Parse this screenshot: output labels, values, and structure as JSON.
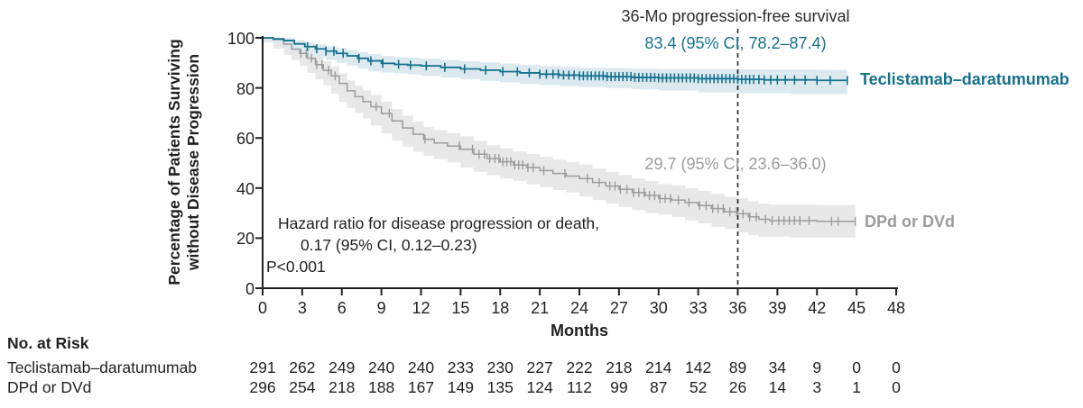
{
  "colors": {
    "axis": "#231f20",
    "text": "#231f20",
    "teal_line": "#15718f",
    "teal_band": "#dce9ee",
    "gray_line": "#9c9c9c",
    "gray_band": "#e8e8e8",
    "gray_text": "#9b9b9b"
  },
  "chart_data": {
    "type": "line",
    "subtype": "kaplan-meier-step",
    "title": "36-Mo progression-free survival",
    "xlabel": "Months",
    "ylabel_line1": "Percentage of Patients Surviving",
    "ylabel_line2": "without Disease Progression",
    "xlim": [
      0,
      48
    ],
    "ylim": [
      0,
      100
    ],
    "x_ticks": [
      0,
      3,
      6,
      9,
      12,
      15,
      18,
      21,
      24,
      27,
      30,
      33,
      36,
      39,
      42,
      45,
      48
    ],
    "y_ticks": [
      0,
      20,
      40,
      60,
      80,
      100
    ],
    "grid": false,
    "dashed_line_x": 36,
    "hazard_note": {
      "line1": "Hazard ratio for disease progression or death,",
      "line2": "0.17 (95% CI, 0.12–0.23)",
      "line3": "P<0.001"
    },
    "series": [
      {
        "name": "Teclistamab–daratumumab",
        "annotation": "83.4 (95% CI, 78.2–87.4)",
        "value_36mo": 83.4,
        "ci_36mo": [
          78.2,
          87.4
        ],
        "steps": [
          [
            0,
            100,
            100,
            100
          ],
          [
            0.8,
            99.6,
            98.6,
            100
          ],
          [
            1.6,
            98.9,
            97.6,
            99.9
          ],
          [
            2.4,
            97.6,
            95.9,
            99.0
          ],
          [
            3.2,
            96.5,
            94.4,
            98.2
          ],
          [
            4.0,
            95.6,
            93.3,
            97.5
          ],
          [
            4.8,
            94.7,
            92.2,
            96.8
          ],
          [
            5.6,
            93.8,
            91.2,
            96.0
          ],
          [
            6.4,
            92.8,
            90.0,
            95.2
          ],
          [
            7.2,
            91.8,
            88.9,
            94.4
          ],
          [
            8.0,
            90.8,
            87.7,
            93.5
          ],
          [
            9.0,
            89.8,
            86.6,
            92.7
          ],
          [
            10.0,
            89.4,
            86.1,
            92.3
          ],
          [
            11.0,
            89.1,
            85.8,
            92.0
          ],
          [
            12.0,
            88.8,
            85.4,
            91.7
          ],
          [
            13.5,
            88.2,
            84.8,
            91.2
          ],
          [
            15.0,
            87.6,
            84.1,
            90.7
          ],
          [
            16.5,
            87.1,
            83.5,
            90.2
          ],
          [
            18.0,
            86.5,
            82.8,
            89.7
          ],
          [
            19.5,
            86.0,
            82.2,
            89.2
          ],
          [
            21.0,
            85.5,
            81.6,
            88.8
          ],
          [
            22.5,
            85.1,
            81.1,
            88.4
          ],
          [
            24.0,
            84.8,
            80.7,
            88.1
          ],
          [
            26.0,
            84.5,
            80.3,
            87.9
          ],
          [
            28.0,
            84.2,
            79.9,
            87.7
          ],
          [
            30.0,
            84.0,
            79.5,
            87.5
          ],
          [
            33.0,
            83.7,
            78.9,
            87.5
          ],
          [
            36.0,
            83.4,
            78.2,
            87.4
          ],
          [
            38.0,
            83.2,
            77.9,
            87.3
          ],
          [
            40.0,
            83.2,
            77.9,
            87.3
          ],
          [
            42.0,
            83.0,
            77.5,
            87.2
          ],
          [
            44.3,
            83.0,
            77.5,
            87.2
          ]
        ],
        "censors": [
          3.4,
          4.1,
          4.8,
          5.4,
          6.1,
          7.3,
          8.2,
          9.1,
          10.3,
          11.2,
          12.4,
          13.8,
          15.3,
          16.9,
          18.2,
          19.3,
          20.2,
          21.0,
          21.5,
          22.0,
          22.4,
          22.8,
          23.2,
          23.6,
          24.0,
          24.3,
          24.6,
          24.9,
          25.2,
          25.5,
          25.8,
          26.1,
          26.4,
          26.7,
          27.0,
          27.3,
          27.6,
          27.9,
          28.2,
          28.5,
          28.8,
          29.1,
          29.4,
          29.7,
          30.0,
          30.3,
          30.6,
          30.9,
          31.2,
          31.5,
          31.8,
          32.1,
          32.4,
          32.7,
          33.0,
          33.3,
          33.6,
          33.9,
          34.2,
          34.5,
          34.8,
          35.1,
          35.4,
          35.7,
          36.0,
          36.3,
          36.6,
          36.9,
          37.2,
          37.6,
          38.0,
          38.5,
          39.0,
          39.6,
          40.3,
          41.1,
          42.0,
          43.0,
          44.3
        ]
      },
      {
        "name": "DPd or DVd",
        "annotation": "29.7 (95% CI, 23.6–36.0)",
        "value_36mo": 29.7,
        "ci_36mo": [
          23.6,
          36.0
        ],
        "steps": [
          [
            0,
            100,
            100,
            100
          ],
          [
            0.8,
            99.3,
            98.2,
            100
          ],
          [
            1.6,
            97.5,
            95.7,
            99.2
          ],
          [
            2.2,
            95.5,
            93.2,
            97.8
          ],
          [
            2.8,
            93.8,
            91.1,
            96.4
          ],
          [
            3.4,
            91.8,
            88.8,
            94.7
          ],
          [
            4.0,
            89.3,
            86.0,
            92.6
          ],
          [
            4.6,
            87.0,
            83.4,
            90.6
          ],
          [
            5.2,
            84.8,
            81.0,
            88.6
          ],
          [
            5.8,
            81.8,
            77.7,
            85.8
          ],
          [
            6.4,
            78.8,
            74.5,
            83.0
          ],
          [
            7.0,
            76.5,
            72.0,
            80.9
          ],
          [
            7.6,
            74.5,
            69.9,
            79.0
          ],
          [
            8.2,
            72.5,
            67.8,
            77.1
          ],
          [
            9.0,
            69.8,
            65.0,
            74.5
          ],
          [
            9.8,
            66.8,
            61.9,
            71.6
          ],
          [
            10.6,
            64.0,
            59.0,
            68.9
          ],
          [
            11.4,
            61.5,
            56.4,
            66.5
          ],
          [
            12.2,
            59.5,
            54.4,
            64.5
          ],
          [
            13.0,
            58.0,
            52.9,
            63.1
          ],
          [
            14.0,
            56.8,
            51.6,
            61.9
          ],
          [
            15.0,
            55.5,
            50.3,
            60.7
          ],
          [
            16.0,
            53.5,
            48.2,
            58.8
          ],
          [
            17.0,
            51.8,
            46.5,
            57.1
          ],
          [
            18.0,
            50.5,
            45.1,
            55.9
          ],
          [
            19.0,
            49.2,
            43.8,
            54.6
          ],
          [
            20.0,
            48.2,
            42.8,
            53.6
          ],
          [
            21.0,
            47.0,
            41.5,
            52.5
          ],
          [
            22.0,
            45.8,
            40.3,
            51.3
          ],
          [
            23.0,
            44.8,
            39.2,
            50.4
          ],
          [
            24.0,
            43.8,
            38.2,
            49.4
          ],
          [
            25.0,
            42.2,
            36.6,
            47.8
          ],
          [
            26.0,
            40.8,
            35.2,
            46.4
          ],
          [
            27.0,
            39.5,
            33.8,
            45.2
          ],
          [
            28.0,
            38.2,
            32.5,
            43.9
          ],
          [
            29.0,
            37.0,
            31.2,
            42.8
          ],
          [
            30.0,
            35.8,
            30.0,
            41.6
          ],
          [
            31.0,
            35.2,
            29.4,
            41.0
          ],
          [
            32.0,
            34.2,
            28.4,
            40.0
          ],
          [
            33.0,
            33.0,
            27.1,
            38.9
          ],
          [
            34.0,
            31.8,
            25.9,
            37.7
          ],
          [
            35.0,
            30.5,
            24.5,
            36.5
          ],
          [
            36.0,
            29.7,
            23.6,
            36.0
          ],
          [
            36.8,
            28.5,
            22.3,
            34.7
          ],
          [
            37.6,
            27.5,
            21.2,
            33.8
          ],
          [
            38.4,
            27.0,
            20.6,
            33.4
          ],
          [
            40.0,
            27.0,
            20.6,
            33.4
          ],
          [
            42.0,
            26.7,
            20.2,
            33.2
          ],
          [
            44.9,
            26.7,
            20.2,
            33.2
          ]
        ],
        "censors": [
          2.9,
          3.3,
          3.7,
          4.1,
          4.5,
          5.0,
          5.5,
          8.6,
          9.6,
          12.3,
          14.9,
          15.9,
          16.4,
          16.8,
          17.2,
          17.6,
          17.9,
          18.2,
          18.5,
          18.8,
          19.1,
          19.4,
          19.7,
          20.1,
          20.5,
          21.3,
          22.9,
          24.6,
          25.5,
          26.3,
          26.7,
          27.1,
          27.6,
          28.1,
          28.5,
          28.9,
          29.3,
          29.7,
          30.1,
          30.5,
          30.9,
          31.5,
          32.3,
          33.1,
          33.6,
          34.1,
          34.5,
          34.9,
          35.4,
          35.9,
          36.4,
          36.9,
          37.4,
          38.1,
          38.6,
          39.1,
          39.5,
          39.9,
          40.3,
          40.7,
          41.4,
          43.1,
          43.6,
          44.9
        ]
      }
    ],
    "risk_table": {
      "title": "No. at Risk",
      "rows": [
        {
          "label": "Teclistamab–daratumumab",
          "values": [
            291,
            262,
            249,
            240,
            240,
            233,
            230,
            227,
            222,
            218,
            214,
            142,
            89,
            34,
            9,
            0,
            0
          ]
        },
        {
          "label": "DPd or DVd",
          "values": [
            296,
            254,
            218,
            188,
            167,
            149,
            135,
            124,
            112,
            99,
            87,
            52,
            26,
            14,
            3,
            1,
            0
          ]
        }
      ]
    }
  }
}
